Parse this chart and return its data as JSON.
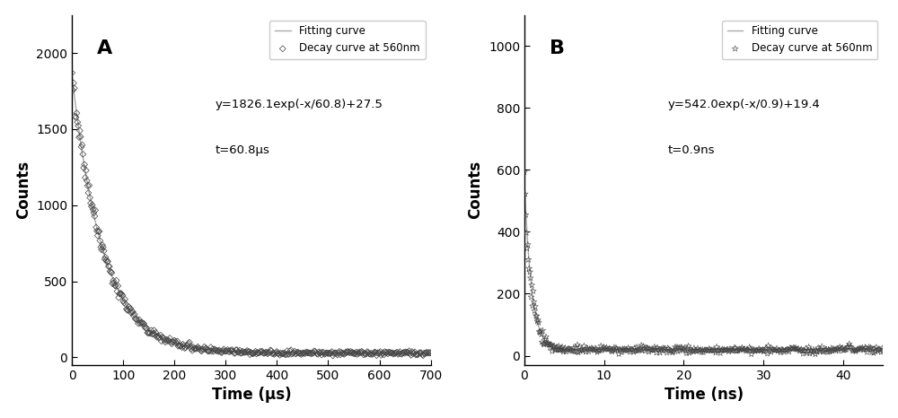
{
  "panel_A": {
    "label": "A",
    "xlabel": "Time (μs)",
    "ylabel": "Counts",
    "xlim": [
      0,
      700
    ],
    "ylim": [
      -50,
      2250
    ],
    "yticks": [
      0,
      500,
      1000,
      1500,
      2000
    ],
    "xticks": [
      0,
      100,
      200,
      300,
      400,
      500,
      600,
      700
    ],
    "A": 1826.1,
    "tau": 60.8,
    "C": 27.5,
    "equation": "y=1826.1exp(-x/60.8)+27.5",
    "tau_label": "t=60.8μs",
    "scatter_color": "#444444",
    "fit_color": "#aaaaaa",
    "marker": "D",
    "marker_size": 3.5,
    "noise_seed": 42,
    "n_points_dense": 80,
    "n_points_sparse": 320,
    "x_dense_end": 120,
    "x_max": 700
  },
  "panel_B": {
    "label": "B",
    "xlabel": "Time (ns)",
    "ylabel": "Counts",
    "xlim": [
      0,
      45
    ],
    "ylim": [
      -30,
      1100
    ],
    "yticks": [
      0,
      200,
      400,
      600,
      800,
      1000
    ],
    "xticks": [
      0,
      10,
      20,
      30,
      40
    ],
    "A": 542.0,
    "tau": 0.9,
    "C": 19.4,
    "equation": "y=542.0exp(-x/0.9)+19.4",
    "tau_label": "t=0.9ns",
    "scatter_color": "#444444",
    "fit_color": "#aaaaaa",
    "marker": "*",
    "marker_size": 5,
    "noise_seed": 17,
    "n_points_dense": 60,
    "n_points_sparse": 340,
    "x_dense_end": 5,
    "x_max": 45
  },
  "legend_decay": "Decay curve at 560nm",
  "legend_fit": "Fitting curve",
  "bg_color": "#ffffff",
  "text_color": "#000000"
}
